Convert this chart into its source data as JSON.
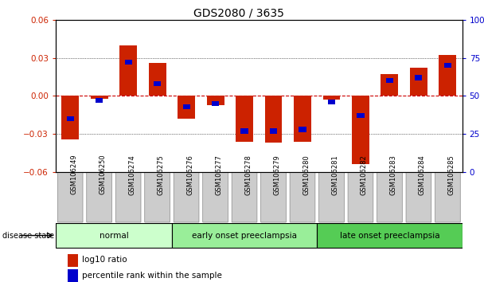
{
  "title": "GDS2080 / 3635",
  "samples": [
    "GSM106249",
    "GSM106250",
    "GSM106274",
    "GSM106275",
    "GSM106276",
    "GSM106277",
    "GSM106278",
    "GSM106279",
    "GSM106280",
    "GSM106281",
    "GSM106282",
    "GSM106283",
    "GSM106284",
    "GSM106285"
  ],
  "log10_ratio": [
    -0.034,
    -0.002,
    0.04,
    0.026,
    -0.018,
    -0.007,
    -0.036,
    -0.037,
    -0.036,
    -0.003,
    -0.054,
    0.017,
    0.022,
    0.032
  ],
  "percentile_rank": [
    35,
    47,
    72,
    58,
    43,
    45,
    27,
    27,
    28,
    46,
    37,
    60,
    62,
    70
  ],
  "groups": [
    {
      "label": "normal",
      "start": 0,
      "end": 4,
      "color": "#ccffcc"
    },
    {
      "label": "early onset preeclampsia",
      "start": 4,
      "end": 9,
      "color": "#99ee99"
    },
    {
      "label": "late onset preeclampsia",
      "start": 9,
      "end": 14,
      "color": "#55cc55"
    }
  ],
  "ylim": [
    -0.06,
    0.06
  ],
  "yticks_left": [
    -0.06,
    -0.03,
    0,
    0.03,
    0.06
  ],
  "yticks_right": [
    0,
    25,
    50,
    75,
    100
  ],
  "bar_color_red": "#cc2200",
  "bar_color_blue": "#0000cc",
  "zero_line_color": "#cc0000",
  "grid_color": "#000000",
  "bg_color": "#ffffff",
  "bar_width": 0.6,
  "blue_bar_width": 0.25,
  "blue_bar_height": 0.004,
  "tick_label_bg": "#cccccc"
}
